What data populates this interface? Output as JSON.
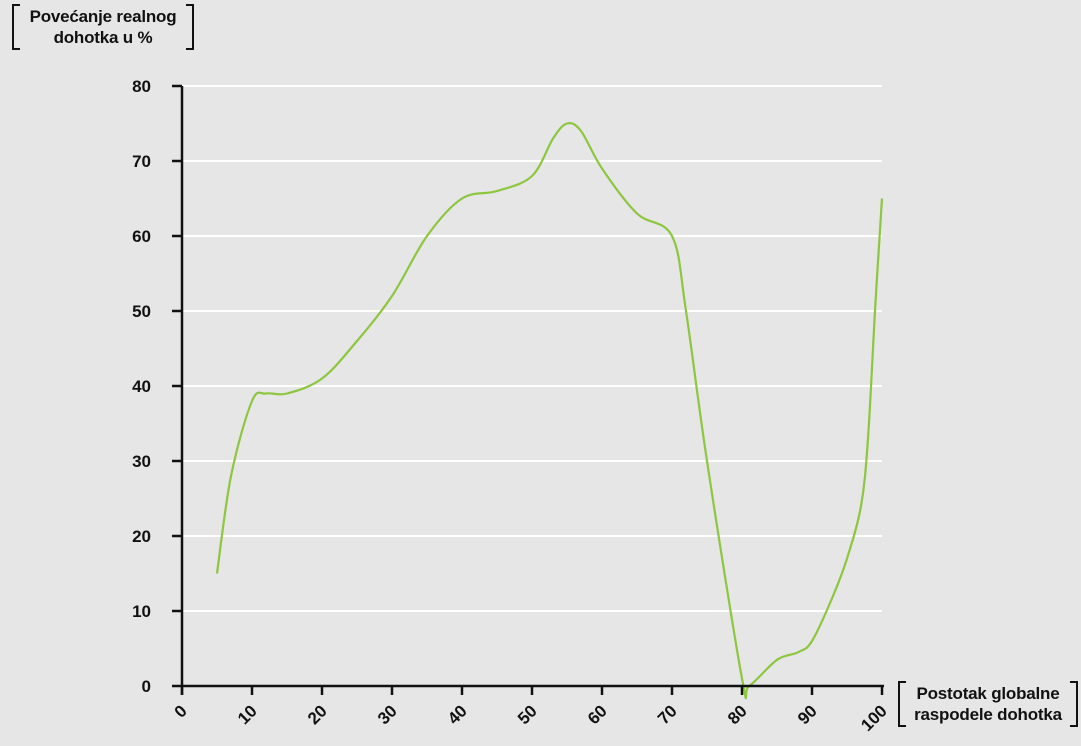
{
  "chart_data": {
    "type": "line",
    "title": "",
    "ylabel_lines": [
      "Povećanje realnog",
      "dohotka u %"
    ],
    "xlabel_lines": [
      "Postotak globalne",
      "raspodele dohotka"
    ],
    "xlim": [
      0,
      100
    ],
    "ylim": [
      0,
      80
    ],
    "xticks": [
      0,
      10,
      20,
      30,
      40,
      50,
      60,
      70,
      80,
      90,
      100
    ],
    "yticks": [
      0,
      10,
      20,
      30,
      40,
      50,
      60,
      70,
      80
    ],
    "grid": true,
    "series": [
      {
        "color": "#8dc63f",
        "x": [
          5,
          7,
          10,
          12,
          15,
          20,
          25,
          30,
          35,
          40,
          45,
          50,
          53,
          55,
          57,
          60,
          65,
          70,
          72,
          75,
          80,
          81,
          85,
          88,
          90,
          93,
          95,
          97,
          98,
          99,
          100
        ],
        "y": [
          15,
          28,
          38,
          39,
          39,
          41,
          46,
          52,
          60,
          65,
          66,
          68,
          73,
          75,
          74,
          69,
          63,
          60,
          50,
          30,
          1,
          0,
          3.5,
          4.5,
          6,
          12,
          17,
          24,
          33,
          50,
          65
        ]
      }
    ]
  },
  "colors": {
    "background": "#e6e6e6",
    "axis": "#111111",
    "grid": "#ffffff",
    "line": "#8dc63f"
  }
}
